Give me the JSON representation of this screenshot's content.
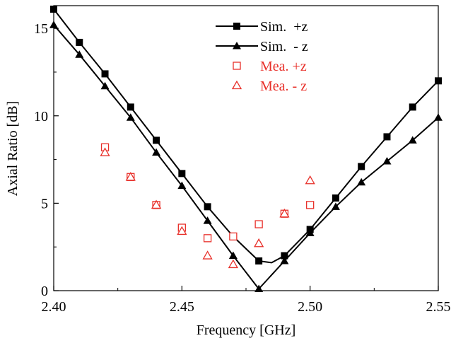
{
  "chart_data": {
    "type": "line",
    "xlabel": "Frequency [GHz]",
    "ylabel": "Axial Ratio [dB]",
    "xlim": [
      2.4,
      2.55
    ],
    "ylim": [
      0,
      16.3
    ],
    "xticks": [
      2.4,
      2.45,
      2.5,
      2.55
    ],
    "xtick_labels": [
      "2.40",
      "2.45",
      "2.50",
      "2.55"
    ],
    "yticks": [
      0,
      5,
      10,
      15
    ],
    "ytick_labels": [
      "0",
      "5",
      "10",
      "15"
    ],
    "legend_position": "top-right",
    "series": [
      {
        "name": "Sim.  +z",
        "style": "line-marker",
        "marker": "filled-square",
        "color": "#000000",
        "line": [
          [
            2.4,
            16.1
          ],
          [
            2.41,
            14.2
          ],
          [
            2.42,
            12.4
          ],
          [
            2.43,
            10.5
          ],
          [
            2.44,
            8.6
          ],
          [
            2.45,
            6.7
          ],
          [
            2.46,
            4.8
          ],
          [
            2.47,
            3.1
          ],
          [
            2.48,
            1.7
          ],
          [
            2.485,
            1.6
          ],
          [
            2.49,
            2.0
          ],
          [
            2.5,
            3.5
          ],
          [
            2.51,
            5.3
          ],
          [
            2.52,
            7.1
          ],
          [
            2.53,
            8.8
          ],
          [
            2.54,
            10.5
          ],
          [
            2.55,
            12.0
          ]
        ],
        "markers": [
          [
            2.4,
            16.1
          ],
          [
            2.41,
            14.2
          ],
          [
            2.42,
            12.4
          ],
          [
            2.43,
            10.5
          ],
          [
            2.44,
            8.6
          ],
          [
            2.45,
            6.7
          ],
          [
            2.46,
            4.8
          ],
          [
            2.47,
            3.1
          ],
          [
            2.48,
            1.7
          ],
          [
            2.49,
            2.0
          ],
          [
            2.5,
            3.5
          ],
          [
            2.51,
            5.3
          ],
          [
            2.52,
            7.1
          ],
          [
            2.53,
            8.8
          ],
          [
            2.54,
            10.5
          ],
          [
            2.55,
            12.0
          ]
        ]
      },
      {
        "name": "Sim.  - z",
        "style": "line-marker",
        "marker": "filled-triangle",
        "color": "#000000",
        "line": [
          [
            2.4,
            15.2
          ],
          [
            2.41,
            13.5
          ],
          [
            2.42,
            11.7
          ],
          [
            2.43,
            9.9
          ],
          [
            2.44,
            7.9
          ],
          [
            2.45,
            6.0
          ],
          [
            2.46,
            4.0
          ],
          [
            2.47,
            2.0
          ],
          [
            2.48,
            0.1
          ],
          [
            2.49,
            1.7
          ],
          [
            2.5,
            3.3
          ],
          [
            2.51,
            4.8
          ],
          [
            2.52,
            6.2
          ],
          [
            2.53,
            7.4
          ],
          [
            2.54,
            8.6
          ],
          [
            2.55,
            9.9
          ]
        ],
        "markers": [
          [
            2.4,
            15.2
          ],
          [
            2.41,
            13.5
          ],
          [
            2.42,
            11.7
          ],
          [
            2.43,
            9.9
          ],
          [
            2.44,
            7.9
          ],
          [
            2.45,
            6.0
          ],
          [
            2.46,
            4.0
          ],
          [
            2.47,
            2.0
          ],
          [
            2.48,
            0.1
          ],
          [
            2.49,
            1.7
          ],
          [
            2.5,
            3.3
          ],
          [
            2.51,
            4.8
          ],
          [
            2.52,
            6.2
          ],
          [
            2.53,
            7.4
          ],
          [
            2.54,
            8.6
          ],
          [
            2.55,
            9.9
          ]
        ]
      },
      {
        "name": "Mea. +z",
        "style": "marker-only",
        "marker": "open-square",
        "color": "#e8302a",
        "markers": [
          [
            2.42,
            8.2
          ],
          [
            2.43,
            6.5
          ],
          [
            2.44,
            4.9
          ],
          [
            2.45,
            3.6
          ],
          [
            2.46,
            3.0
          ],
          [
            2.47,
            3.1
          ],
          [
            2.48,
            3.8
          ],
          [
            2.49,
            4.4
          ],
          [
            2.5,
            4.9
          ]
        ]
      },
      {
        "name": "Mea. - z",
        "style": "marker-only",
        "marker": "open-triangle",
        "color": "#e8302a",
        "markers": [
          [
            2.42,
            7.9
          ],
          [
            2.43,
            6.5
          ],
          [
            2.44,
            4.9
          ],
          [
            2.45,
            3.4
          ],
          [
            2.46,
            2.0
          ],
          [
            2.47,
            1.5
          ],
          [
            2.48,
            2.7
          ],
          [
            2.49,
            4.4
          ],
          [
            2.5,
            6.3
          ]
        ]
      }
    ]
  }
}
